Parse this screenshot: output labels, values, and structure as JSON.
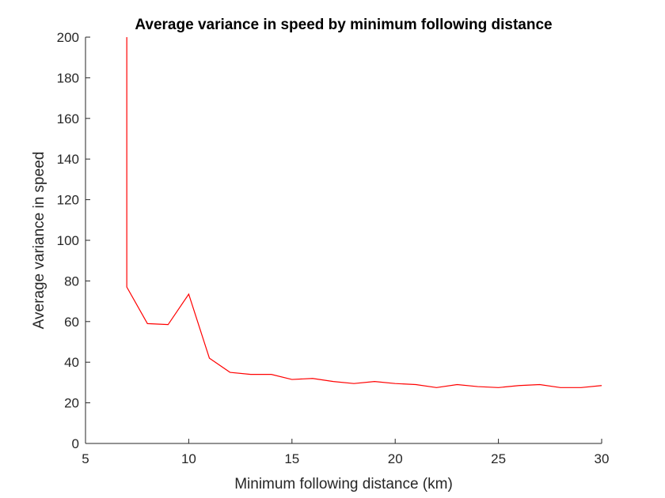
{
  "chart_data": {
    "type": "line",
    "title": "Average variance in speed by minimum following distance",
    "xlabel": "Minimum following distance (km)",
    "ylabel": "Average variance in speed",
    "xlim": [
      5,
      30
    ],
    "ylim": [
      0,
      200
    ],
    "xticks": [
      5,
      10,
      15,
      20,
      25,
      30
    ],
    "yticks": [
      0,
      20,
      40,
      60,
      80,
      100,
      120,
      140,
      160,
      180,
      200
    ],
    "grid": false,
    "series": [
      {
        "color": "#ff0000",
        "x": [
          7,
          7,
          8,
          9,
          10,
          11,
          12,
          13,
          14,
          15,
          16,
          17,
          18,
          19,
          20,
          21,
          22,
          23,
          24,
          25,
          26,
          27,
          28,
          29,
          30
        ],
        "y": [
          200,
          77,
          59,
          58.5,
          73.5,
          42,
          35,
          34,
          34,
          31.5,
          32,
          30.5,
          29.5,
          30.5,
          29.5,
          29,
          27.5,
          29,
          28,
          27.5,
          28.5,
          29,
          27.5,
          27.5,
          28.5
        ]
      }
    ]
  }
}
